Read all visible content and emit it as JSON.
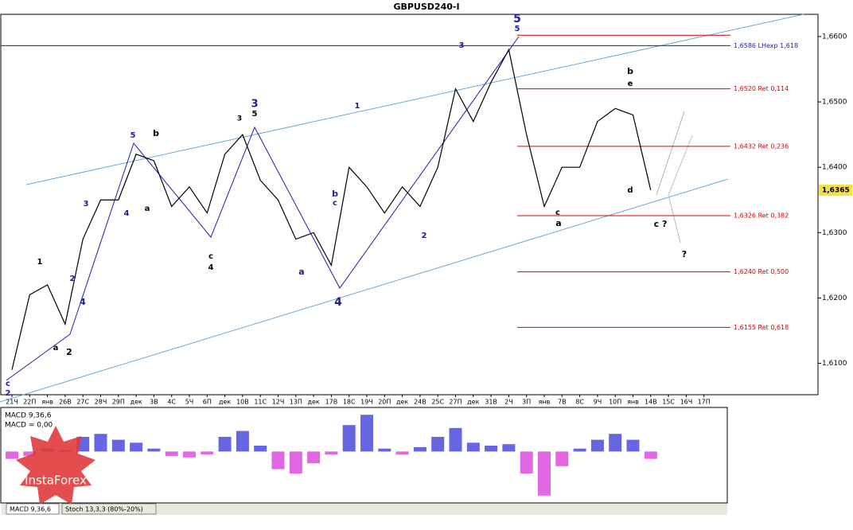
{
  "chart_data": {
    "type": "line",
    "title": "GBPUSD240-I",
    "categories": [
      "21Ч",
      "22П",
      "янв",
      "26В",
      "27С",
      "28Ч",
      "29П",
      "дек",
      "3В",
      "4С",
      "5Ч",
      "6П",
      "дек",
      "10В",
      "11С",
      "12Ч",
      "13П",
      "дек",
      "17В",
      "18С",
      "19Ч",
      "20П",
      "дек",
      "24В",
      "25С",
      "27П",
      "дек",
      "31В",
      "2Ч",
      "3П",
      "янв",
      "7В",
      "8С",
      "9Ч",
      "10П",
      "янв",
      "14В",
      "15С",
      "16Ч",
      "17П"
    ],
    "series": [
      {
        "name": "GBPUSD240-I",
        "color": "#000000",
        "values": [
          1.609,
          1.6205,
          1.622,
          1.616,
          1.629,
          1.635,
          1.635,
          1.642,
          1.641,
          1.634,
          1.637,
          1.633,
          1.642,
          1.645,
          1.638,
          1.635,
          1.629,
          1.63,
          1.625,
          1.64,
          1.637,
          1.633,
          1.637,
          1.634,
          1.64,
          1.652,
          1.647,
          1.653,
          1.658,
          1.645,
          1.634,
          1.64,
          1.64,
          1.647,
          1.649,
          1.648,
          1.6365,
          null,
          null,
          null
        ]
      }
    ],
    "ylim": [
      1.6052,
      1.6634
    ],
    "yticks": [
      {
        "value": 1.61,
        "label": "1,6100"
      },
      {
        "value": 1.62,
        "label": "1,6200"
      },
      {
        "value": 1.63,
        "label": "1,6300"
      },
      {
        "value": 1.64,
        "label": "1,6400"
      },
      {
        "value": 1.65,
        "label": "1,6500"
      },
      {
        "value": 1.66,
        "label": "1,6600"
      }
    ],
    "current_price": {
      "value": 1.6365,
      "label": "1,6365"
    },
    "levels": [
      {
        "value": 1.6586,
        "label": "1,6586 LHexp 1,618",
        "color": "#1c1cb0"
      },
      {
        "value": 1.6602,
        "color": "#d80000"
      },
      {
        "value": 1.652,
        "label": "1,6520 Ret 0,114",
        "color": "#d80000"
      },
      {
        "value": 1.6432,
        "label": "1,6432 Ret 0,236",
        "color": "#d80000"
      },
      {
        "value": 1.6326,
        "label": "1,6326 Ret 0,382",
        "color": "#d80000"
      },
      {
        "value": 1.624,
        "label": "1,6240 Ret 0,500",
        "color": "#d80000"
      },
      {
        "value": 1.6155,
        "label": "1,6155 Ret 0,618",
        "color": "#d80000"
      }
    ],
    "annotations": [
      {
        "text": "5",
        "color": "#1c1c9c"
      },
      {
        "text": "5",
        "color": "#1c1c9c"
      },
      {
        "text": "3",
        "color": "#1c1c9c"
      },
      {
        "text": "3",
        "color": "#1c1c9c"
      },
      {
        "text": "5",
        "color": "#000000"
      },
      {
        "text": "3",
        "color": "#000000"
      },
      {
        "text": "5",
        "color": "#1c1c9c"
      },
      {
        "text": "b",
        "color": "#000000"
      },
      {
        "text": "1",
        "color": "#1c1c9c"
      },
      {
        "text": "4",
        "color": "#1c1c9c"
      },
      {
        "text": "a",
        "color": "#000000"
      },
      {
        "text": "b",
        "color": "#1c1c9c"
      },
      {
        "text": "c",
        "color": "#1c1c9c"
      },
      {
        "text": "4",
        "color": "#1c1c9c"
      },
      {
        "text": "1",
        "color": "#000000"
      },
      {
        "text": "a",
        "color": "#000000"
      },
      {
        "text": "2",
        "color": "#000000"
      },
      {
        "text": "3",
        "color": "#1c1c9c"
      },
      {
        "text": "4",
        "color": "#1c1c9c"
      },
      {
        "text": "2",
        "color": "#1c1c9c"
      },
      {
        "text": "c",
        "color": "#1c1c9c"
      },
      {
        "text": "2",
        "color": "#1c1c9c"
      },
      {
        "text": "c",
        "color": "#000000"
      },
      {
        "text": "4",
        "color": "#000000"
      },
      {
        "text": "a",
        "color": "#1c1c9c"
      },
      {
        "text": "b",
        "color": "#000000"
      },
      {
        "text": "e",
        "color": "#000000"
      },
      {
        "text": "a",
        "color": "#000000"
      },
      {
        "text": "c ?",
        "color": "#000000"
      },
      {
        "text": "?",
        "color": "#000000"
      },
      {
        "text": "2",
        "color": "#1c1c9c"
      },
      {
        "text": "d",
        "color": "#000000"
      },
      {
        "text": "c",
        "color": "#000000"
      }
    ],
    "macd": {
      "label": "MACD 9,36,6",
      "value_label": "MACD = 0,00",
      "ylim": [
        -0.0035,
        0.003
      ],
      "positive_color": "#0000d0",
      "negative_color": "#d000d0",
      "values": [
        -0.0005,
        -0.0003,
        0.0002,
        0.0001,
        0.001,
        0.0012,
        0.0008,
        0.0006,
        0.0002,
        -0.0003,
        -0.0004,
        -0.0002,
        0.001,
        0.0014,
        0.0004,
        -0.0012,
        -0.0015,
        -0.0008,
        -0.0002,
        0.0018,
        0.0025,
        0.0002,
        -0.0002,
        0.0003,
        0.001,
        0.0016,
        0.0006,
        0.0004,
        0.0005,
        -0.0015,
        -0.003,
        -0.001,
        0.0002,
        0.0008,
        0.0012,
        0.0008,
        -0.0005,
        null,
        null,
        null
      ]
    },
    "tabs": [
      "MACD 9,36,6",
      "Stoch 13,3,3 (80%-20%)"
    ],
    "brand": "InstaForex"
  }
}
